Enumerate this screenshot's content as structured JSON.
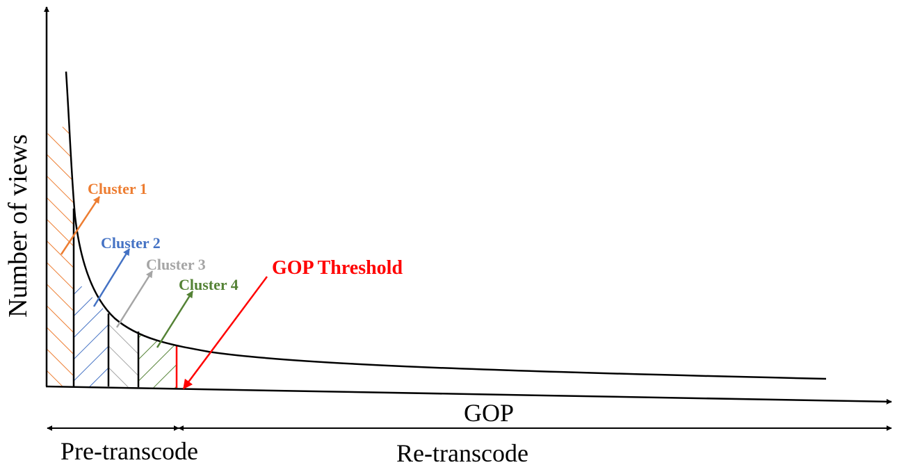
{
  "axes": {
    "y_label": "Number of views",
    "x_label": "GOP"
  },
  "labels": {
    "cluster_1": "Cluster 1",
    "cluster_2": "Cluster 2",
    "cluster_3": "Cluster 3",
    "cluster_4": "Cluster 4",
    "threshold": "GOP Threshold"
  },
  "ranges": {
    "pre_transcode": "Pre-transcode",
    "re_transcode": "Re-transcode"
  },
  "colors": {
    "cluster_1": "#ED7D31",
    "cluster_2": "#4472C4",
    "cluster_3": "#A5A5A5",
    "cluster_4": "#548235",
    "threshold": "#FF0000",
    "axis": "#000000"
  }
}
